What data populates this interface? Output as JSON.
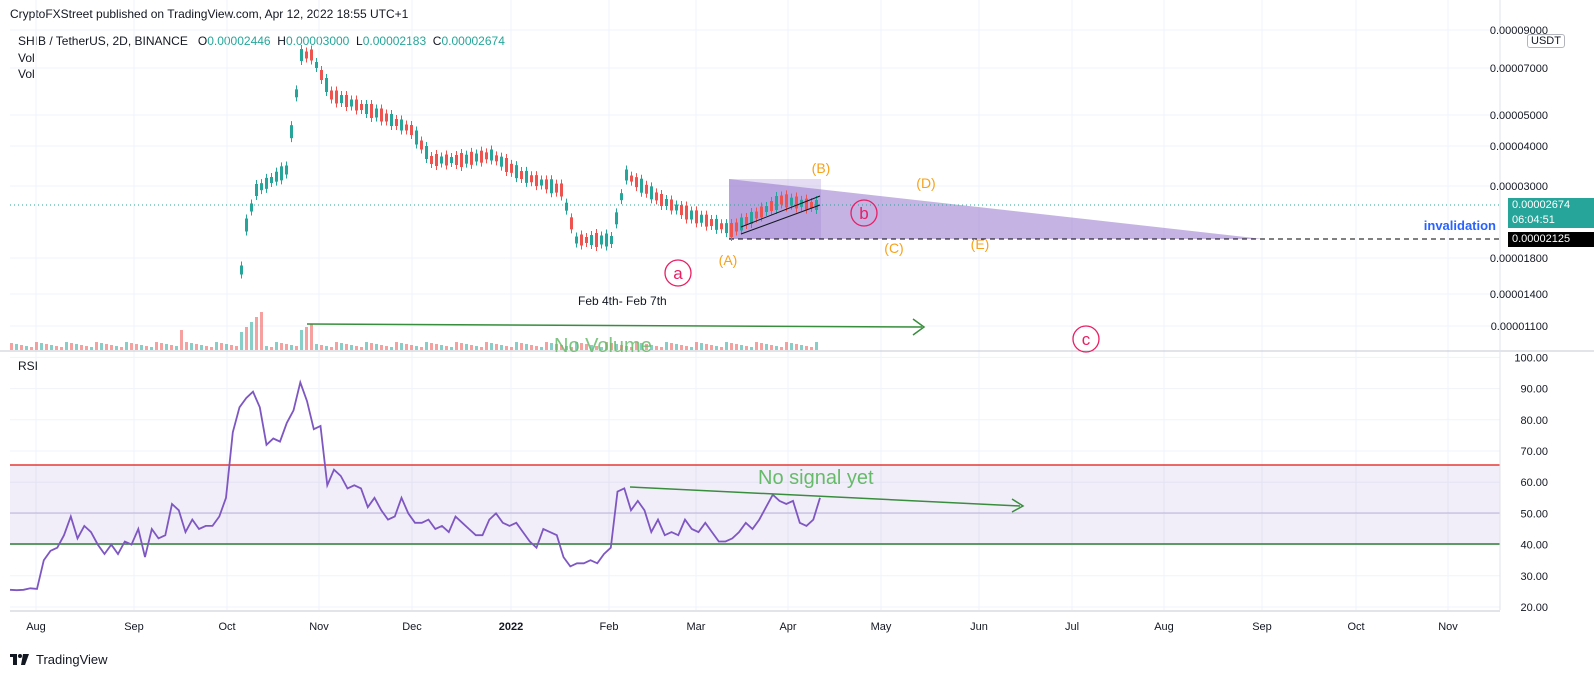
{
  "header": {
    "publisher_line": "CryptoFXStreet published on TradingView.com, Apr 12, 2022 18:55 UTC+1"
  },
  "legend": {
    "symbol": "SHIB / TetherUS, 2D, BINANCE",
    "open_key": "O",
    "open": "0.00002446",
    "high_key": "H",
    "high": "0.00003000",
    "low_key": "L",
    "low": "0.00002183",
    "close_key": "C",
    "close": "0.00002674",
    "vol1": "Vol",
    "vol2": "Vol"
  },
  "currency_badge": "USDT",
  "price_axis": {
    "ticks": [
      "0.00009000",
      "0.00007000",
      "0.00005000",
      "0.00004000",
      "0.00003000",
      "0.00001800",
      "0.00001400",
      "0.00001100"
    ],
    "current_price": "0.00002674",
    "countdown": "06:04:51",
    "invalidation_price": "0.00002125"
  },
  "rsi_axis": {
    "label": "RSI",
    "ticks": [
      "100.00",
      "90.00",
      "80.00",
      "70.00",
      "60.00",
      "50.00",
      "40.00",
      "30.00",
      "20.00"
    ]
  },
  "time_axis": {
    "ticks": [
      "Aug",
      "Sep",
      "Oct",
      "Nov",
      "Dec",
      "2022",
      "Feb",
      "Mar",
      "Apr",
      "May",
      "Jun",
      "Jul",
      "Aug",
      "Sep",
      "Oct",
      "Nov"
    ]
  },
  "annotations": {
    "wave_a": "a",
    "wave_b": "b",
    "wave_c": "c",
    "tri_A": "(A)",
    "tri_B": "(B)",
    "tri_C": "(C)",
    "tri_D": "(D)",
    "tri_E": "(E)",
    "invalidation": "invalidation",
    "feb_note": "Feb 4th- Feb 7th",
    "no_volume": "No Volume",
    "no_signal": "No signal yet"
  },
  "footer": {
    "brand": "TradingView"
  },
  "colors": {
    "up": "#26a69a",
    "down": "#ef5350",
    "orange": "#f7a21b",
    "crimson": "#e91e63",
    "rsi_line": "#7e57c2",
    "triangle_fill": "#9575cd",
    "arrow_green": "#388e3c",
    "invalidation_blue": "#2962ff"
  },
  "chart_data": {
    "type": "candlestick",
    "symbol": "SHIB / TetherUS",
    "timeframe": "2D",
    "price_scale": "log",
    "x_range": [
      "Jul 2021",
      "Nov 2022"
    ],
    "y_ticks": [
      1.1e-05,
      1.4e-05,
      1.8e-05,
      3e-05,
      4e-05,
      5e-05,
      7e-05,
      9e-05
    ],
    "last_close": 2.674e-05,
    "invalidation_level": 2.125e-05,
    "rsi": {
      "upper_band": 65,
      "lower_band": 40,
      "mid": 50,
      "y_ticks": [
        20,
        30,
        40,
        50,
        60,
        70,
        80,
        90,
        100
      ],
      "values": [
        25.5,
        25.4,
        25.5,
        26,
        25.8,
        35,
        38,
        39,
        43,
        49,
        42,
        46,
        44,
        40,
        37,
        40,
        37,
        41,
        40,
        45,
        36,
        45,
        42,
        43,
        53,
        51,
        44,
        48,
        45,
        46,
        46,
        49,
        55,
        76,
        84,
        87,
        89,
        84,
        72,
        74,
        73,
        79,
        83,
        92,
        86,
        77,
        78,
        59,
        64,
        62,
        58,
        59,
        58,
        52,
        55,
        51,
        48,
        49,
        55,
        50,
        47,
        47,
        48,
        45,
        46,
        44,
        49,
        47,
        45,
        43,
        43,
        48,
        50,
        47,
        46,
        47,
        44,
        41,
        39,
        45,
        44,
        43,
        36,
        33,
        34,
        34,
        35,
        34,
        37,
        39,
        57,
        58,
        51,
        54,
        51,
        44,
        48,
        43,
        44,
        43,
        48,
        45,
        44,
        47,
        44,
        41,
        41,
        42,
        44,
        47,
        45,
        48,
        52,
        56,
        54,
        53,
        54,
        47,
        46,
        48,
        55
      ]
    }
  }
}
